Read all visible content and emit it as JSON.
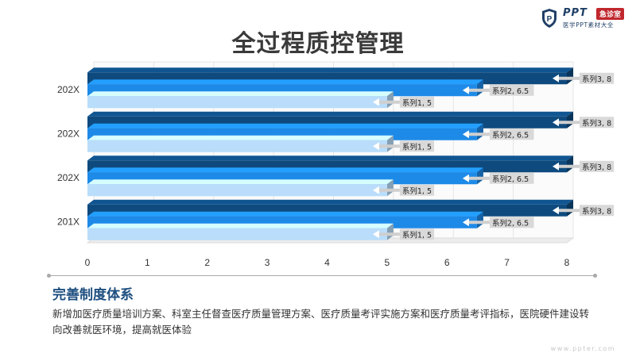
{
  "header": {
    "logo_brand": "PPT",
    "logo_badge": "急诊室",
    "logo_sub": "医学PPT素材大全",
    "title": "全过程质控管理"
  },
  "chart_data": {
    "type": "bar",
    "orientation": "horizontal",
    "categories": [
      "201X",
      "202X",
      "202X",
      "202X"
    ],
    "series": [
      {
        "name": "系列1",
        "values": [
          5,
          5,
          5,
          5
        ],
        "color": "#b9ddfa"
      },
      {
        "name": "系列2",
        "values": [
          6.5,
          6.5,
          6.5,
          6.5
        ],
        "color": "#1e8ae8"
      },
      {
        "name": "系列3",
        "values": [
          8,
          8,
          8,
          8
        ],
        "color": "#0e4a7e"
      }
    ],
    "xlim": [
      0,
      8
    ],
    "ticks": [
      "0",
      "1",
      "2",
      "3",
      "4",
      "5",
      "6",
      "7",
      "8"
    ],
    "data_labels": true,
    "title": "",
    "xlabel": "",
    "ylabel": ""
  },
  "section": {
    "title": "完善制度体系",
    "text": "新增加医疗质量培训方案、科室主任督查医疗质量管理方案、医疗质量考评实施方案和医疗质量考评指标，医院硬件建设转向改善就医环境，提高就医体验"
  },
  "watermark": "www.ppter.com"
}
